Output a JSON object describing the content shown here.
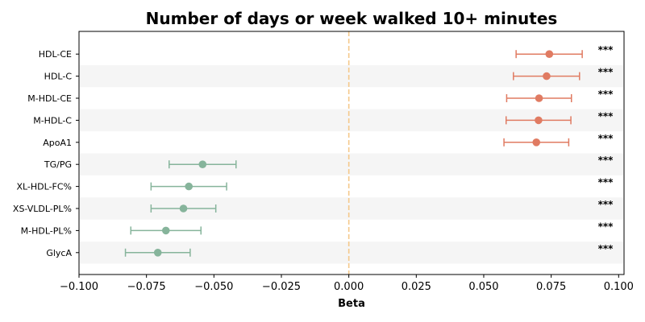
{
  "chart_data": {
    "type": "forest",
    "title": "Number of days or week walked 10+ minutes",
    "xlabel": "Beta",
    "xlim": [
      -0.1,
      0.102
    ],
    "xticks": [
      -0.1,
      -0.075,
      -0.05,
      -0.025,
      0.0,
      0.025,
      0.05,
      0.075,
      0.1
    ],
    "xtick_labels": [
      "−0.100",
      "−0.075",
      "−0.050",
      "−0.025",
      "0.000",
      "0.025",
      "0.050",
      "0.075",
      "0.100"
    ],
    "reference_line": 0.0,
    "colors": {
      "positive": "#e07b62",
      "negative": "#86b49b",
      "reference": "#f5c98b",
      "stripe": "#f5f5f5"
    },
    "rows": [
      {
        "label": "HDL-CE",
        "beta": 0.0743,
        "lo": 0.062,
        "hi": 0.0865,
        "sig": "***"
      },
      {
        "label": "HDL-C",
        "beta": 0.0733,
        "lo": 0.061,
        "hi": 0.0855,
        "sig": "***"
      },
      {
        "label": "M-HDL-CE",
        "beta": 0.0705,
        "lo": 0.0585,
        "hi": 0.0825,
        "sig": "***"
      },
      {
        "label": "M-HDL-C",
        "beta": 0.0703,
        "lo": 0.0583,
        "hi": 0.0823,
        "sig": "***"
      },
      {
        "label": "ApoA1",
        "beta": 0.0695,
        "lo": 0.0575,
        "hi": 0.0815,
        "sig": "***"
      },
      {
        "label": "TG/PG",
        "beta": -0.0542,
        "lo": -0.0666,
        "hi": -0.0418,
        "sig": "***"
      },
      {
        "label": "XL-HDL-FC%",
        "beta": -0.0593,
        "lo": -0.0733,
        "hi": -0.0453,
        "sig": "***"
      },
      {
        "label": "XS-VLDL-PL%",
        "beta": -0.0613,
        "lo": -0.0733,
        "hi": -0.0493,
        "sig": "***"
      },
      {
        "label": "M-HDL-PL%",
        "beta": -0.0678,
        "lo": -0.0808,
        "hi": -0.0548,
        "sig": "***"
      },
      {
        "label": "GlycA",
        "beta": -0.0708,
        "lo": -0.0828,
        "hi": -0.0588,
        "sig": "***"
      }
    ]
  }
}
